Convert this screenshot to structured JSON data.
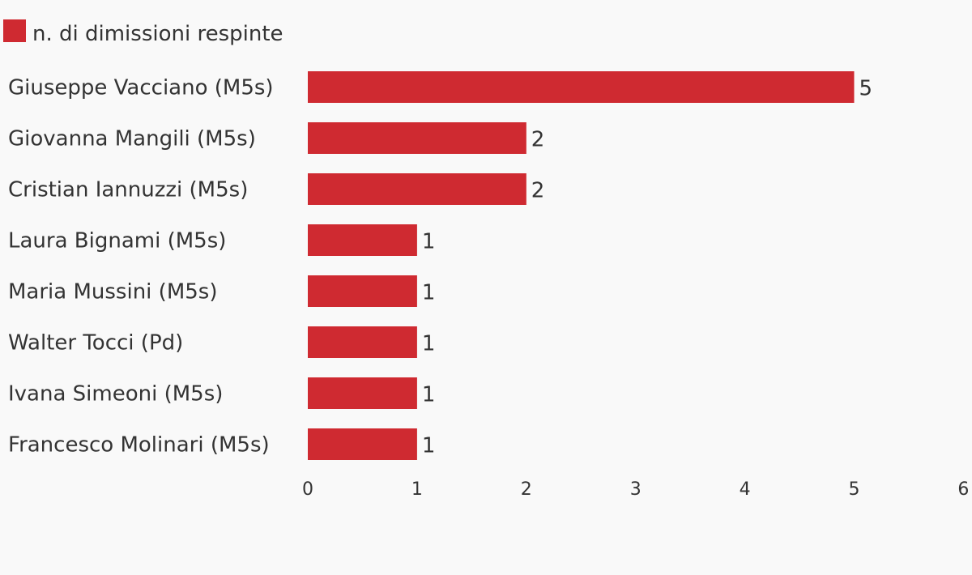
{
  "chart_data": {
    "type": "bar",
    "orientation": "horizontal",
    "categories": [
      "Giuseppe Vacciano (M5s)",
      "Giovanna Mangili (M5s)",
      "Cristian Iannuzzi (M5s)",
      "Laura Bignami (M5s)",
      "Maria Mussini (M5s)",
      "Walter Tocci (Pd)",
      "Ivana Simeoni (M5s)",
      "Francesco Molinari (M5s)"
    ],
    "series": [
      {
        "name": "n. di dimissioni respinte",
        "color": "#cf2a31",
        "values": [
          5,
          2,
          2,
          1,
          1,
          1,
          1,
          1
        ]
      }
    ],
    "xlim": [
      0,
      6
    ],
    "xticks": [
      "0",
      "1",
      "2",
      "3",
      "4",
      "5",
      "6"
    ],
    "grid": false,
    "legend": "top-left"
  }
}
